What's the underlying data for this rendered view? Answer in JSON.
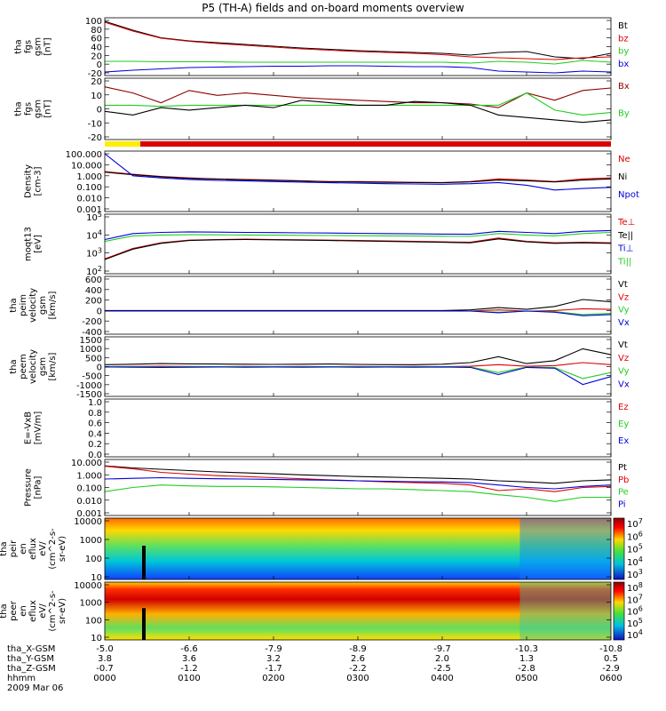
{
  "title": "P5 (TH-A) fields and on-board moments overview",
  "colors": {
    "black": "#000000",
    "red": "#dd0000",
    "green": "#22cc22",
    "blue": "#0000dd",
    "darkred": "#8b0000",
    "yellow": "#ffee00"
  },
  "chart_data": [
    {
      "type": "line",
      "ylabel": [
        "tha",
        "fgs",
        "gsm",
        "[nT]"
      ],
      "yticks": [
        "100",
        "80",
        "60",
        "40",
        "20",
        "0",
        "-20"
      ],
      "ylim": [
        -30,
        100
      ],
      "legend": [
        {
          "name": "Bt",
          "color": "black"
        },
        {
          "name": "bz",
          "color": "red"
        },
        {
          "name": "by",
          "color": "green"
        },
        {
          "name": "bx",
          "color": "blue"
        }
      ],
      "series": [
        {
          "name": "Bt",
          "color": "black",
          "y": [
            92,
            72,
            55,
            48,
            44,
            40,
            36,
            32,
            29,
            26,
            24,
            22,
            20,
            16,
            22,
            24,
            12,
            8,
            20
          ]
        },
        {
          "name": "bz",
          "color": "red",
          "y": [
            90,
            70,
            54,
            47,
            42,
            38,
            34,
            30,
            27,
            24,
            22,
            20,
            17,
            12,
            10,
            8,
            6,
            10,
            12
          ]
        },
        {
          "name": "by",
          "color": "green",
          "y": [
            2,
            2,
            1,
            1,
            1,
            0,
            0,
            0,
            0,
            0,
            0,
            0,
            0,
            -2,
            2,
            0,
            -4,
            4,
            0
          ]
        },
        {
          "name": "bx",
          "color": "blue",
          "y": [
            -22,
            -18,
            -15,
            -12,
            -11,
            -10,
            -9,
            -9,
            -8,
            -8,
            -9,
            -10,
            -10,
            -12,
            -20,
            -22,
            -24,
            -20,
            -22
          ]
        }
      ]
    },
    {
      "type": "line",
      "ylabel": [
        "tha",
        "fgs",
        "gsm",
        "[nT]"
      ],
      "yticks": [
        "20",
        "10",
        "0",
        "-10",
        "-20"
      ],
      "ylim": [
        -28,
        22
      ],
      "legend": [
        {
          "name": "Bx",
          "color": "darkred"
        },
        {
          "name": "By",
          "color": "green"
        }
      ],
      "series": [
        {
          "name": "Bx",
          "color": "darkred",
          "y": [
            15,
            10,
            2,
            12,
            8,
            10,
            8,
            6,
            5,
            4,
            3,
            2,
            2,
            1,
            -2,
            10,
            4,
            12,
            14
          ]
        },
        {
          "name": "By",
          "color": "green",
          "y": [
            0,
            0,
            -1,
            0,
            0,
            0,
            0,
            0,
            0,
            0,
            0,
            0,
            0,
            0,
            0,
            10,
            -4,
            -8,
            -6
          ]
        },
        {
          "name": "Bz",
          "color": "black",
          "y": [
            -5,
            -8,
            -2,
            -4,
            -2,
            0,
            -2,
            4,
            2,
            0,
            0,
            3,
            2,
            0,
            -8,
            -10,
            -12,
            -14,
            -12
          ]
        }
      ]
    },
    {
      "type": "line",
      "log": true,
      "ylabel": [
        "Density",
        "[cm-3]"
      ],
      "yticks": [
        "100.000",
        "10.000",
        "1.000",
        "0.100",
        "0.010",
        "0.001"
      ],
      "ylim": [
        0.001,
        100
      ],
      "legend": [
        {
          "name": "Ne",
          "color": "red"
        },
        {
          "name": "Ni",
          "color": "black"
        },
        {
          "name": "Npot",
          "color": "blue"
        }
      ],
      "series": [
        {
          "name": "Ne",
          "color": "red",
          "y": [
            2,
            1.2,
            0.8,
            0.6,
            0.5,
            0.45,
            0.4,
            0.35,
            0.3,
            0.3,
            0.28,
            0.26,
            0.25,
            0.3,
            0.5,
            0.4,
            0.3,
            0.5,
            0.6
          ]
        },
        {
          "name": "Ni",
          "color": "black",
          "y": [
            1.8,
            1.1,
            0.75,
            0.55,
            0.48,
            0.42,
            0.38,
            0.33,
            0.29,
            0.28,
            0.26,
            0.25,
            0.24,
            0.28,
            0.4,
            0.35,
            0.28,
            0.4,
            0.5
          ]
        },
        {
          "name": "Npot",
          "color": "blue",
          "y": [
            60,
            0.9,
            0.6,
            0.45,
            0.38,
            0.34,
            0.3,
            0.27,
            0.24,
            0.22,
            0.2,
            0.19,
            0.18,
            0.2,
            0.25,
            0.15,
            0.06,
            0.08,
            0.1
          ]
        }
      ]
    },
    {
      "type": "line",
      "log": true,
      "ylabel": [
        "moqt13",
        "[eV]"
      ],
      "yticks": [
        "10^5",
        "10^4",
        "10^3",
        "10^2"
      ],
      "ylim": [
        10,
        100000
      ],
      "legend": [
        {
          "name": "Te⊥",
          "color": "red"
        },
        {
          "name": "Te||",
          "color": "black"
        },
        {
          "name": "Ti⊥",
          "color": "blue"
        },
        {
          "name": "Ti||",
          "color": "green"
        }
      ],
      "series": [
        {
          "name": "Te⊥",
          "color": "red",
          "y": [
            100,
            500,
            1200,
            1800,
            2000,
            2100,
            2000,
            1900,
            1800,
            1700,
            1600,
            1500,
            1400,
            1300,
            2500,
            1500,
            1200,
            1300,
            1200
          ]
        },
        {
          "name": "Te||",
          "color": "black",
          "y": [
            90,
            450,
            1100,
            1700,
            1900,
            2000,
            1900,
            1800,
            1700,
            1600,
            1500,
            1400,
            1300,
            1200,
            2200,
            1400,
            1100,
            1200,
            1100
          ]
        },
        {
          "name": "Ti⊥",
          "color": "blue",
          "y": [
            2000,
            5000,
            6000,
            6500,
            6200,
            6000,
            5800,
            5600,
            5400,
            5200,
            5000,
            4800,
            4600,
            4500,
            7000,
            6000,
            5000,
            7000,
            8000
          ]
        },
        {
          "name": "Ti||",
          "color": "green",
          "y": [
            1500,
            3500,
            4000,
            4200,
            4100,
            4000,
            3900,
            3800,
            3700,
            3600,
            3500,
            3400,
            3300,
            3200,
            5000,
            4000,
            3500,
            5000,
            6000
          ]
        }
      ]
    },
    {
      "type": "line",
      "ylabel": [
        "tha",
        "peim",
        "velocity",
        "gsm",
        "[km/s]"
      ],
      "yticks": [
        "600",
        "400",
        "200",
        "0",
        "-200",
        "-400"
      ],
      "ylim": [
        -400,
        600
      ],
      "legend": [
        {
          "name": "Vt",
          "color": "black"
        },
        {
          "name": "Vz",
          "color": "red"
        },
        {
          "name": "Vy",
          "color": "green"
        },
        {
          "name": "Vx",
          "color": "blue"
        }
      ],
      "series": [
        {
          "name": "Vt",
          "color": "black",
          "y": [
            10,
            10,
            10,
            10,
            10,
            10,
            10,
            10,
            10,
            10,
            10,
            10,
            10,
            20,
            60,
            30,
            80,
            200,
            160
          ]
        },
        {
          "name": "Vz",
          "color": "red",
          "y": [
            0,
            0,
            0,
            0,
            0,
            0,
            0,
            0,
            0,
            0,
            0,
            0,
            0,
            0,
            20,
            0,
            10,
            40,
            30
          ]
        },
        {
          "name": "Vy",
          "color": "green",
          "y": [
            0,
            0,
            0,
            0,
            0,
            0,
            0,
            0,
            0,
            0,
            0,
            0,
            0,
            0,
            -20,
            0,
            -10,
            -60,
            -40
          ]
        },
        {
          "name": "Vx",
          "color": "blue",
          "y": [
            0,
            0,
            0,
            0,
            0,
            0,
            0,
            0,
            0,
            0,
            0,
            0,
            0,
            0,
            -30,
            0,
            -20,
            -80,
            -60
          ]
        }
      ]
    },
    {
      "type": "line",
      "ylabel": [
        "tha",
        "peem",
        "velocity",
        "gsm",
        "[km/s]"
      ],
      "yticks": [
        "1500",
        "1000",
        "500",
        "0",
        "-500",
        "-1000",
        "-1500"
      ],
      "ylim": [
        -1500,
        1500
      ],
      "legend": [
        {
          "name": "Vt",
          "color": "black"
        },
        {
          "name": "Vz",
          "color": "red"
        },
        {
          "name": "Vy",
          "color": "green"
        },
        {
          "name": "Vx",
          "color": "blue"
        }
      ],
      "series": [
        {
          "name": "Vt",
          "color": "black",
          "y": [
            100,
            120,
            150,
            140,
            130,
            120,
            110,
            120,
            130,
            110,
            100,
            100,
            120,
            200,
            500,
            150,
            300,
            900,
            600
          ]
        },
        {
          "name": "Vz",
          "color": "red",
          "y": [
            0,
            10,
            20,
            10,
            0,
            10,
            0,
            10,
            0,
            10,
            0,
            10,
            0,
            20,
            100,
            20,
            50,
            200,
            100
          ]
        },
        {
          "name": "Vy",
          "color": "green",
          "y": [
            0,
            -10,
            -20,
            -10,
            0,
            -10,
            0,
            -10,
            0,
            -10,
            0,
            -10,
            0,
            -20,
            -300,
            -20,
            -50,
            -600,
            -300
          ]
        },
        {
          "name": "Vx",
          "color": "blue",
          "y": [
            -20,
            -30,
            -40,
            -30,
            -20,
            -30,
            -20,
            -30,
            -20,
            -30,
            -20,
            -30,
            -20,
            -40,
            -400,
            -40,
            -80,
            -900,
            -500
          ]
        }
      ]
    },
    {
      "type": "line",
      "ylabel": [
        "E=-VxB",
        "[mV/m]"
      ],
      "yticks": [
        "1.0",
        "0.8",
        "0.6",
        "0.4",
        "0.2",
        "0.0"
      ],
      "ylim": [
        0,
        1
      ],
      "legend": [
        {
          "name": "Ez",
          "color": "red"
        },
        {
          "name": "Ey",
          "color": "green"
        },
        {
          "name": "Ex",
          "color": "blue"
        }
      ],
      "series": []
    },
    {
      "type": "line",
      "log": true,
      "ylabel": [
        "Pressure",
        "[nPa]"
      ],
      "yticks": [
        "10.000",
        "1.000",
        "0.100",
        "0.010",
        "0.001"
      ],
      "ylim": [
        0.001,
        10
      ],
      "legend": [
        {
          "name": "Pt",
          "color": "black"
        },
        {
          "name": "Pb",
          "color": "red"
        },
        {
          "name": "Pe",
          "color": "green"
        },
        {
          "name": "Pi",
          "color": "blue"
        }
      ],
      "series": [
        {
          "name": "Pt",
          "color": "black",
          "y": [
            3.5,
            2.5,
            2.0,
            1.6,
            1.3,
            1.1,
            0.95,
            0.8,
            0.7,
            0.6,
            0.55,
            0.5,
            0.45,
            0.4,
            0.3,
            0.25,
            0.2,
            0.3,
            0.35
          ]
        },
        {
          "name": "Pb",
          "color": "red",
          "y": [
            3.3,
            2.2,
            1.2,
            0.9,
            0.7,
            0.6,
            0.5,
            0.42,
            0.35,
            0.3,
            0.25,
            0.22,
            0.2,
            0.15,
            0.06,
            0.08,
            0.05,
            0.1,
            0.12
          ]
        },
        {
          "name": "Pe",
          "color": "green",
          "y": [
            0.05,
            0.1,
            0.15,
            0.13,
            0.12,
            0.12,
            0.11,
            0.1,
            0.09,
            0.08,
            0.08,
            0.07,
            0.06,
            0.05,
            0.03,
            0.02,
            0.01,
            0.02,
            0.02
          ]
        },
        {
          "name": "Pi",
          "color": "blue",
          "y": [
            0.4,
            0.45,
            0.5,
            0.45,
            0.42,
            0.4,
            0.38,
            0.35,
            0.33,
            0.3,
            0.28,
            0.26,
            0.25,
            0.22,
            0.15,
            0.1,
            0.08,
            0.12,
            0.15
          ]
        }
      ]
    },
    {
      "type": "heatmap",
      "ylabel": [
        "tha",
        "peir",
        "en",
        "eflux",
        "eV/",
        "(cm^2-s-",
        "sr-eV)"
      ],
      "yticks": [
        "10000",
        "1000",
        "100",
        "10"
      ],
      "colorbar_ticks": [
        "10^7",
        "10^6",
        "10^5",
        "10^4",
        "10^3"
      ]
    },
    {
      "type": "heatmap",
      "ylabel": [
        "tha",
        "peer",
        "en",
        "eflux",
        "eV/",
        "(cm^2-s-",
        "sr-eV)"
      ],
      "yticks": [
        "10000",
        "1000",
        "100",
        "10"
      ],
      "colorbar_ticks": [
        "10^8",
        "10^7",
        "10^6",
        "10^5",
        "10^4"
      ]
    }
  ],
  "xaxis": {
    "row_labels": [
      "tha_X-GSM",
      "tha_Y-GSM",
      "tha_Z-GSM",
      "hhmm",
      "2009 Mar 06"
    ],
    "ticks": [
      {
        "x": "-5.0",
        "y": "3.8",
        "z": "-0.7",
        "t": "0000"
      },
      {
        "x": "-6.6",
        "y": "3.6",
        "z": "-1.2",
        "t": "0100"
      },
      {
        "x": "-7.9",
        "y": "3.2",
        "z": "-1.7",
        "t": "0200"
      },
      {
        "x": "-8.9",
        "y": "2.6",
        "z": "-2.2",
        "t": "0300"
      },
      {
        "x": "-9.7",
        "y": "2.0",
        "z": "-2.5",
        "t": "0400"
      },
      {
        "x": "-10.3",
        "y": "1.3",
        "z": "-2.8",
        "t": "0500"
      },
      {
        "x": "-10.8",
        "y": "0.5",
        "z": "-2.9",
        "t": "0600"
      }
    ]
  }
}
